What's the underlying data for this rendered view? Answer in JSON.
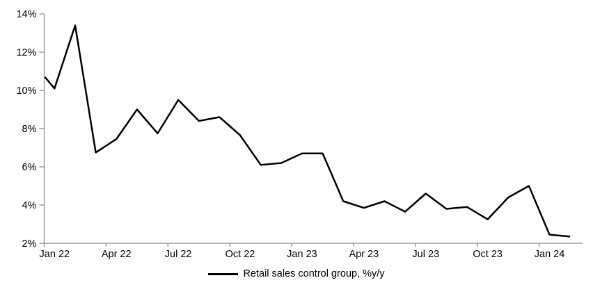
{
  "chart_data": {
    "type": "line",
    "title": "",
    "legend": "Retail sales control group, %y/y",
    "legend_position": "bottom-center",
    "grid": false,
    "background_color": "#ffffff",
    "series_color": "#000000",
    "axis_color": "#8c8c8c",
    "text_color": "#000000",
    "ylabel": "",
    "xlabel": "",
    "ylim": [
      2,
      14
    ],
    "y_step": 2,
    "y_tick_labels": [
      "2%",
      "4%",
      "6%",
      "8%",
      "10%",
      "12%",
      "14%"
    ],
    "x_tick_labels": [
      "Jan 22",
      "Apr 22",
      "Jul 22",
      "Oct 22",
      "Jan 23",
      "Apr 23",
      "Jul 23",
      "Oct 23",
      "Jan 24"
    ],
    "x_tick_every": 3,
    "categories": [
      "Jan 22",
      "Feb 22",
      "Mar 22",
      "Apr 22",
      "May 22",
      "Jun 22",
      "Jul 22",
      "Aug 22",
      "Sep 22",
      "Oct 22",
      "Nov 22",
      "Dec 22",
      "Jan 23",
      "Feb 23",
      "Mar 23",
      "Apr 23",
      "May 23",
      "Jun 23",
      "Jul 23",
      "Aug 23",
      "Sep 23",
      "Oct 23",
      "Nov 23",
      "Dec 23",
      "Jan 24",
      "Feb 24"
    ],
    "values": [
      10.1,
      13.4,
      6.75,
      7.45,
      9.0,
      7.75,
      9.5,
      8.4,
      8.6,
      7.65,
      6.1,
      6.2,
      6.7,
      6.7,
      4.2,
      3.85,
      4.2,
      3.65,
      4.6,
      3.8,
      3.9,
      3.25,
      4.4,
      5.0,
      2.45,
      2.35
    ],
    "left_edge_start_value": 10.7
  }
}
